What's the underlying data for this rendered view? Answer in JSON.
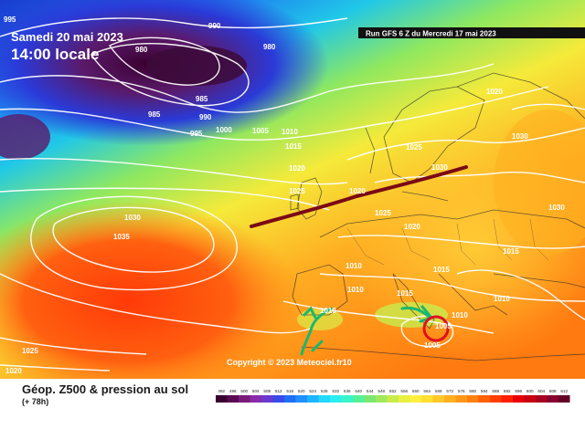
{
  "header": {
    "date": "Samedi 20 mai 2023",
    "local_time": "14:00 locale",
    "run": "Run GFS 6 Z du Mercredi 17 mai 2023"
  },
  "footer": {
    "title": "Géop. Z500 & pression au sol",
    "lead": "(+ 78h)",
    "copyright": "Copyright © 2023 Meteociel.fr10"
  },
  "isobar_labels": [
    {
      "id": "l995a",
      "text": "995"
    },
    {
      "id": "l990a",
      "text": "990"
    },
    {
      "id": "l980a",
      "text": "980"
    },
    {
      "id": "l980b",
      "text": "980"
    },
    {
      "id": "l985a",
      "text": "985"
    },
    {
      "id": "l985b",
      "text": "985"
    },
    {
      "id": "l990b",
      "text": "990"
    },
    {
      "id": "l995b",
      "text": "995"
    },
    {
      "id": "l1000",
      "text": "1000"
    },
    {
      "id": "l1005a",
      "text": "1005"
    },
    {
      "id": "l1010a",
      "text": "1010"
    },
    {
      "id": "l1015a",
      "text": "1015"
    },
    {
      "id": "l1020a",
      "text": "1020"
    },
    {
      "id": "l1025a",
      "text": "1025"
    },
    {
      "id": "l1030a",
      "text": "1030"
    },
    {
      "id": "l1035",
      "text": "1035"
    },
    {
      "id": "l1020b",
      "text": "1020"
    },
    {
      "id": "l1030b",
      "text": "1030"
    },
    {
      "id": "l1025b",
      "text": "1025"
    },
    {
      "id": "l1030c",
      "text": "1030"
    },
    {
      "id": "l1020c",
      "text": "1020"
    },
    {
      "id": "l1025c",
      "text": "1025"
    },
    {
      "id": "l1020d",
      "text": "1020"
    },
    {
      "id": "l1015b",
      "text": "1015"
    },
    {
      "id": "l1010b",
      "text": "1010"
    },
    {
      "id": "l1010c",
      "text": "1010"
    },
    {
      "id": "l1010d",
      "text": "1010"
    },
    {
      "id": "l1015c",
      "text": "1015"
    },
    {
      "id": "l1010e",
      "text": "1010"
    },
    {
      "id": "l1010f",
      "text": "1010"
    },
    {
      "id": "l1005b",
      "text": "1005"
    },
    {
      "id": "l1005c",
      "text": "1005"
    },
    {
      "id": "l1015d",
      "text": "1015"
    },
    {
      "id": "l1025d",
      "text": "1025"
    },
    {
      "id": "l1020e",
      "text": "1020"
    },
    {
      "id": "l1030d",
      "text": "1030"
    }
  ],
  "colorbar": {
    "ticks": [
      "492",
      "496",
      "500",
      "504",
      "508",
      "512",
      "516",
      "520",
      "524",
      "528",
      "532",
      "536",
      "540",
      "544",
      "548",
      "552",
      "556",
      "560",
      "564",
      "568",
      "572",
      "576",
      "580",
      "584",
      "588",
      "592",
      "596",
      "600",
      "604",
      "608",
      "612"
    ],
    "colors": [
      "#3b0032",
      "#5a0a50",
      "#7a1a78",
      "#8a2aa8",
      "#6a3ad0",
      "#3a4ae8",
      "#1f6ef5",
      "#1e90ff",
      "#1eb4ff",
      "#22d8ff",
      "#2aeef0",
      "#3af5c8",
      "#55f09a",
      "#7ae870",
      "#a2e85a",
      "#c8ec4c",
      "#e8f040",
      "#fff040",
      "#ffe030",
      "#ffc828",
      "#ffb020",
      "#ff9818",
      "#ff8010",
      "#ff6008",
      "#ff4000",
      "#ff2000",
      "#e80000",
      "#c80010",
      "#a80020",
      "#880030",
      "#640028"
    ]
  },
  "colors": {
    "high_pressure": "#ff5a14",
    "low_pressure": "#2a5ff0",
    "trough_line": "#7a0a16",
    "circle_marker": "#e01020",
    "ridge_arrows": "#19b870"
  }
}
